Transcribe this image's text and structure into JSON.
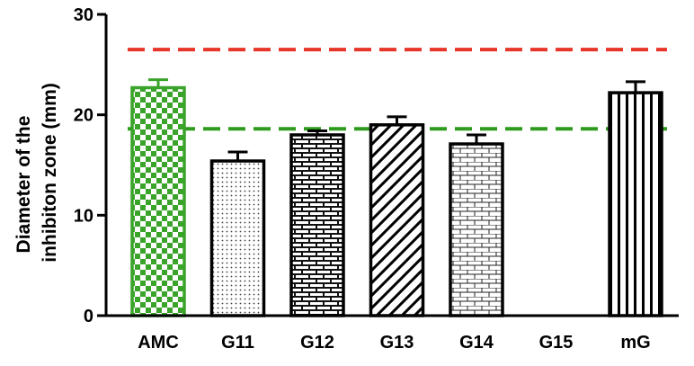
{
  "chart_data": {
    "type": "bar",
    "title": "",
    "xlabel": "",
    "ylabel_lines": [
      "Diameter of the",
      "inhibiton zone (mm)"
    ],
    "ylim": [
      0,
      30
    ],
    "yticks": [
      0,
      10,
      20,
      30
    ],
    "categories": [
      "AMC",
      "G11",
      "G12",
      "G13",
      "G14",
      "G15",
      "mG"
    ],
    "values": [
      22.7,
      15.4,
      18.0,
      19.0,
      17.1,
      0,
      22.2
    ],
    "error": [
      0.8,
      0.9,
      0.4,
      0.8,
      0.9,
      0,
      1.1
    ],
    "patterns": [
      "green-checker",
      "dots",
      "dark-brick",
      "diagonal",
      "brick",
      "none",
      "vertical"
    ],
    "reference_lines": [
      {
        "value": 26.5,
        "color": "#e8352a",
        "style": "dashed"
      },
      {
        "value": 18.6,
        "color": "#2e9a1e",
        "style": "dashed"
      }
    ],
    "grid": false,
    "colors": {
      "axis": "#000000",
      "amc": "#3aa32a"
    }
  }
}
